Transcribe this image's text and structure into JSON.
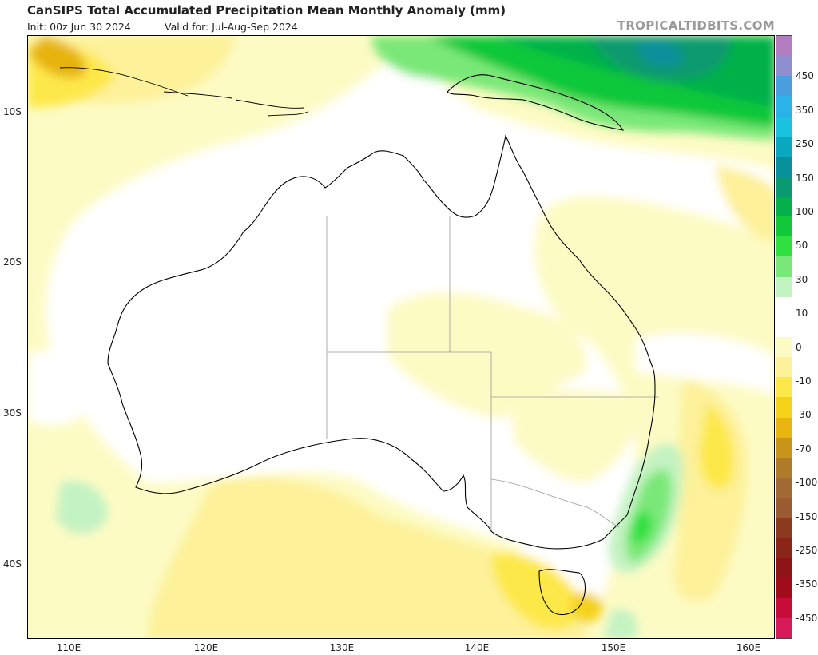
{
  "header": {
    "title": "CanSIPS Total Accumulated Precipitation Mean Monthly Anomaly (mm)",
    "init": "Init: 00z Jun 30 2024",
    "valid": "Valid for: Jul-Aug-Sep 2024",
    "credit": "TROPICALTIDBITS.COM"
  },
  "map": {
    "lat_labels": [
      "10S",
      "20S",
      "30S",
      "40S"
    ],
    "lon_labels": [
      "110E",
      "120E",
      "130E",
      "140E",
      "150E",
      "160E"
    ],
    "region": "Australia"
  },
  "colorbar": {
    "labels": [
      "450",
      "350",
      "250",
      "150",
      "100",
      "50",
      "30",
      "10",
      "0",
      "-10",
      "-30",
      "-70",
      "-100",
      "-150",
      "-250",
      "-350",
      "-450"
    ],
    "colors": [
      "#b37bc0",
      "#8f8fd0",
      "#4a9fe0",
      "#2bb3e8",
      "#19c2de",
      "#0aa8c0",
      "#0a8f9c",
      "#0a9a70",
      "#05b04a",
      "#10c83a",
      "#2fe03f",
      "#7ae878",
      "#c4f3c2",
      "#ffffff",
      "#ffffff",
      "#fdfbc4",
      "#fdf19a",
      "#fde84a",
      "#f5d21a",
      "#e7b410",
      "#c99418",
      "#b07c2a",
      "#a06a32",
      "#9c5a30",
      "#8c3a1e",
      "#8a2618",
      "#8c1414",
      "#a00c1c",
      "#c80c3a",
      "#d81a5a"
    ]
  }
}
